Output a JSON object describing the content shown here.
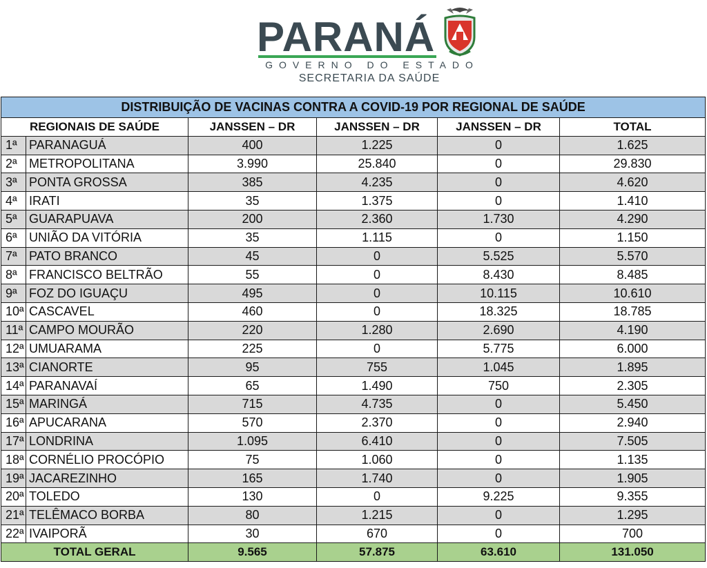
{
  "header": {
    "logo_word": "PARANÁ",
    "logo_sub": "GOVERNO DO ESTADO",
    "secretaria": "SECRETARIA DA SAÚDE"
  },
  "table": {
    "title": "DISTRIBUIÇÃO DE VACINAS CONTRA A COVID-19 POR REGIONAL DE SAÚDE",
    "headers": [
      "REGIONAIS DE SAÚDE",
      "JANSSEN – DR",
      "JANSSEN – DR",
      "JANSSEN – DR",
      "TOTAL"
    ],
    "rows": [
      {
        "ord": "1ª",
        "name": "PARANAGUÁ",
        "c1": "400",
        "c2": "1.225",
        "c3": "0",
        "total": "1.625"
      },
      {
        "ord": "2ª",
        "name": "METROPOLITANA",
        "c1": "3.990",
        "c2": "25.840",
        "c3": "0",
        "total": "29.830"
      },
      {
        "ord": "3ª",
        "name": "PONTA GROSSA",
        "c1": "385",
        "c2": "4.235",
        "c3": "0",
        "total": "4.620"
      },
      {
        "ord": "4ª",
        "name": "IRATI",
        "c1": "35",
        "c2": "1.375",
        "c3": "0",
        "total": "1.410"
      },
      {
        "ord": "5ª",
        "name": "GUARAPUAVA",
        "c1": "200",
        "c2": "2.360",
        "c3": "1.730",
        "total": "4.290"
      },
      {
        "ord": "6ª",
        "name": "UNIÃO DA VITÓRIA",
        "c1": "35",
        "c2": "1.115",
        "c3": "0",
        "total": "1.150"
      },
      {
        "ord": "7ª",
        "name": "PATO BRANCO",
        "c1": "45",
        "c2": "0",
        "c3": "5.525",
        "total": "5.570"
      },
      {
        "ord": "8ª",
        "name": "FRANCISCO BELTRÃO",
        "c1": "55",
        "c2": "0",
        "c3": "8.430",
        "total": "8.485"
      },
      {
        "ord": "9ª",
        "name": "FOZ DO IGUAÇU",
        "c1": "495",
        "c2": "0",
        "c3": "10.115",
        "total": "10.610"
      },
      {
        "ord": "10ª",
        "name": "CASCAVEL",
        "c1": "460",
        "c2": "0",
        "c3": "18.325",
        "total": "18.785"
      },
      {
        "ord": "11ª",
        "name": "CAMPO MOURÃO",
        "c1": "220",
        "c2": "1.280",
        "c3": "2.690",
        "total": "4.190"
      },
      {
        "ord": "12ª",
        "name": "UMUARAMA",
        "c1": "225",
        "c2": "0",
        "c3": "5.775",
        "total": "6.000"
      },
      {
        "ord": "13ª",
        "name": "CIANORTE",
        "c1": "95",
        "c2": "755",
        "c3": "1.045",
        "total": "1.895"
      },
      {
        "ord": "14ª",
        "name": "PARANAVAÍ",
        "c1": "65",
        "c2": "1.490",
        "c3": "750",
        "total": "2.305"
      },
      {
        "ord": "15ª",
        "name": "MARINGÁ",
        "c1": "715",
        "c2": "4.735",
        "c3": "0",
        "total": "5.450"
      },
      {
        "ord": "16ª",
        "name": "APUCARANA",
        "c1": "570",
        "c2": "2.370",
        "c3": "0",
        "total": "2.940"
      },
      {
        "ord": "17ª",
        "name": "LONDRINA",
        "c1": "1.095",
        "c2": "6.410",
        "c3": "0",
        "total": "7.505"
      },
      {
        "ord": "18ª",
        "name": "CORNÉLIO PROCÓPIO",
        "c1": "75",
        "c2": "1.060",
        "c3": "0",
        "total": "1.135"
      },
      {
        "ord": "19ª",
        "name": "JACAREZINHO",
        "c1": "165",
        "c2": "1.740",
        "c3": "0",
        "total": "1.905"
      },
      {
        "ord": "20ª",
        "name": "TOLEDO",
        "c1": "130",
        "c2": "0",
        "c3": "9.225",
        "total": "9.355"
      },
      {
        "ord": "21ª",
        "name": "TELÊMACO BORBA",
        "c1": "80",
        "c2": "1.215",
        "c3": "0",
        "total": "1.295"
      },
      {
        "ord": "22ª",
        "name": "IVAIPORÃ",
        "c1": "30",
        "c2": "670",
        "c3": "0",
        "total": "700"
      }
    ],
    "total_row": {
      "label": "TOTAL GERAL",
      "c1": "9.565",
      "c2": "57.875",
      "c3": "63.610",
      "total": "131.050"
    }
  },
  "colors": {
    "title_bg": "#9dc3e6",
    "alt_row_bg": "#d9d9d9",
    "total_bg": "#a9d18e",
    "logo_text": "#3b4a52",
    "logo_green": "#3aa655"
  }
}
